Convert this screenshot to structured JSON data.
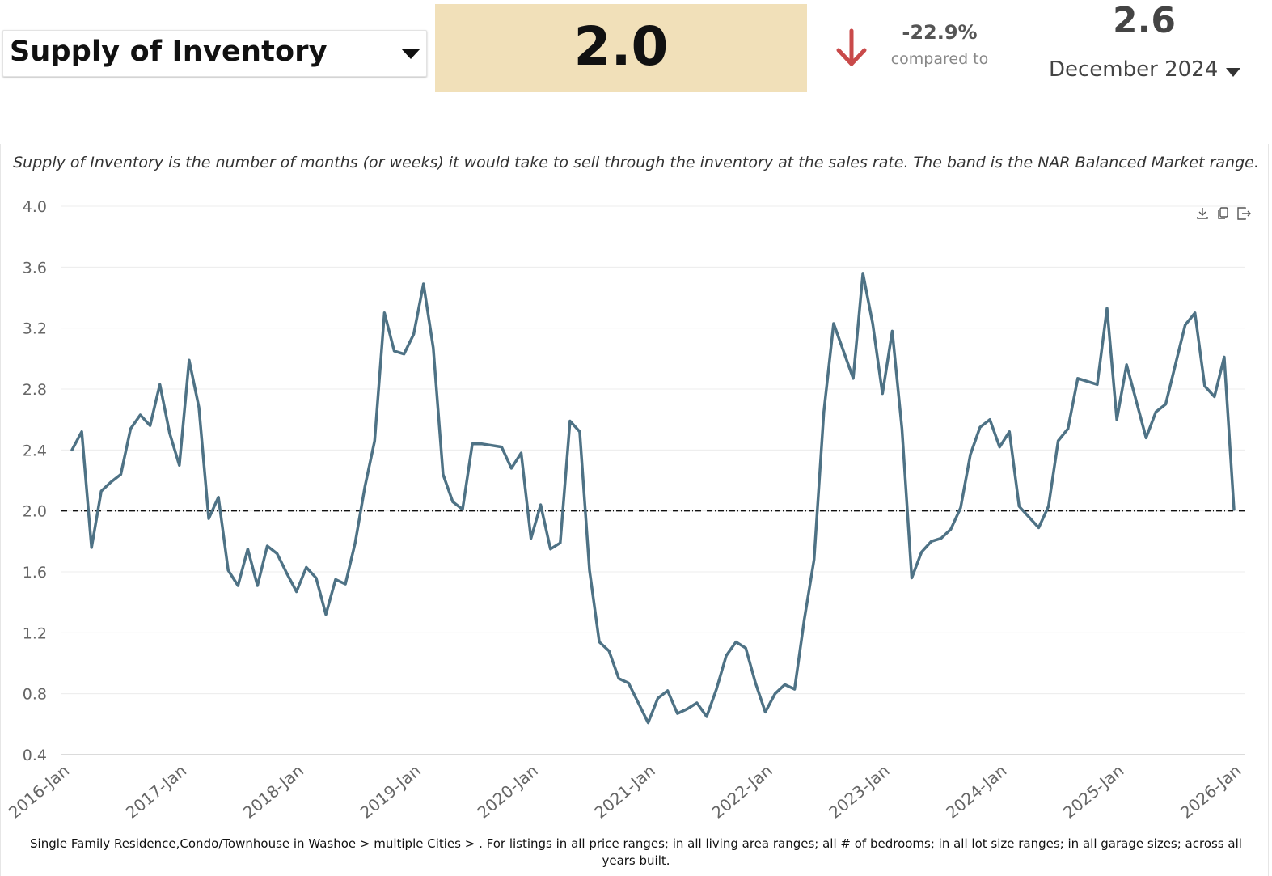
{
  "header": {
    "metric_label": "Supply of Inventory",
    "current_value": "2.0",
    "change_pct": "-22.9%",
    "compared_to_label": "compared to",
    "compare_value": "2.6",
    "compare_period": "December 2024"
  },
  "colors": {
    "value_box_bg": "#f1e0b9",
    "line": "#4e7285",
    "down_arrow": "#c94a4a",
    "reference_line": "#111111"
  },
  "icons": [
    "caret-down-icon",
    "arrow-down-icon",
    "download-icon",
    "copy-icon",
    "export-icon"
  ],
  "chart_data": {
    "type": "line",
    "description_text": "Supply of Inventory is the number of months (or weeks) it would take to sell through the inventory at the sales rate. The band is the NAR Balanced Market range.",
    "y_ticks": [
      "4.0",
      "3.6",
      "3.2",
      "2.8",
      "2.4",
      "2.0",
      "1.6",
      "1.2",
      "0.8",
      "0.4"
    ],
    "ylim": [
      0.4,
      4.0
    ],
    "x_ticks": [
      "2016-Jan",
      "2017-Jan",
      "2018-Jan",
      "2019-Jan",
      "2020-Jan",
      "2021-Jan",
      "2022-Jan",
      "2023-Jan",
      "2024-Jan",
      "2025-Jan",
      "2026-Jan"
    ],
    "reference_line": 2.0,
    "grid": "horizontal",
    "x_start": "2016-Jan",
    "x_step": "1 month",
    "series": [
      {
        "values": [
          2.4,
          2.52,
          1.76,
          2.13,
          2.19,
          2.24,
          2.54,
          2.63,
          2.56,
          2.83,
          2.51,
          2.3,
          2.99,
          2.68,
          1.95,
          2.09,
          1.61,
          1.51,
          1.75,
          1.51,
          1.77,
          1.72,
          1.59,
          1.47,
          1.63,
          1.56,
          1.32,
          1.55,
          1.52,
          1.79,
          2.16,
          2.46,
          3.3,
          3.05,
          3.03,
          3.16,
          3.49,
          3.07,
          2.24,
          2.06,
          2.01,
          2.44,
          2.44,
          2.43,
          2.42,
          2.28,
          2.38,
          1.82,
          2.04,
          1.75,
          1.79,
          2.59,
          2.52,
          1.61,
          1.14,
          1.08,
          0.9,
          0.87,
          0.74,
          0.61,
          0.77,
          0.82,
          0.67,
          0.7,
          0.74,
          0.65,
          0.83,
          1.05,
          1.14,
          1.1,
          0.87,
          0.68,
          0.8,
          0.86,
          0.83,
          1.29,
          1.68,
          2.65,
          3.23,
          3.05,
          2.87,
          3.56,
          3.23,
          2.77,
          3.18,
          2.54,
          1.56,
          1.73,
          1.8,
          1.82,
          1.88,
          2.02,
          2.37,
          2.55,
          2.6,
          2.42,
          2.52,
          2.03,
          1.96,
          1.89,
          2.03,
          2.46,
          2.54,
          2.87,
          2.85,
          2.83,
          3.33,
          2.6,
          2.96,
          2.72,
          2.48,
          2.65,
          2.7,
          2.96,
          3.22,
          3.3,
          2.82,
          2.75,
          3.01,
          2.01
        ]
      }
    ]
  },
  "footer": {
    "text": "Single Family Residence,Condo/Townhouse in Washoe > multiple Cities > . For listings in all price ranges; in all living area ranges; all # of bedrooms; in all lot size ranges; in all garage sizes; across all years built."
  }
}
